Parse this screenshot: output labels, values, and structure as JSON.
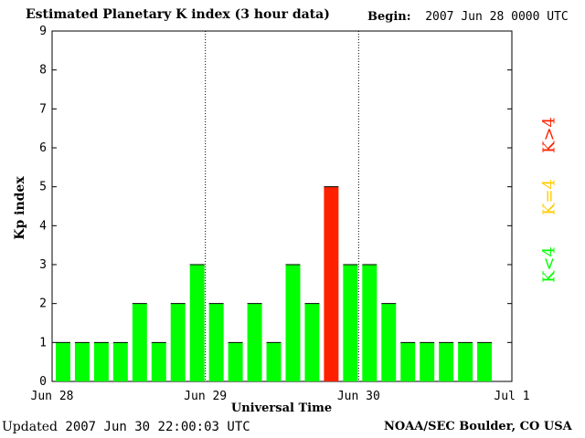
{
  "header": {
    "title": "Estimated Planetary K index (3 hour data)",
    "begin_label": "Begin:",
    "begin_value": "2007 Jun 28 0000 UTC"
  },
  "footer": {
    "updated_label": "Updated",
    "updated_value": "2007 Jun 30 22:00:03 UTC",
    "source": "NOAA/SEC Boulder, CO USA"
  },
  "legend": {
    "low": "K<4",
    "equal": "K=4",
    "high": "K>4"
  },
  "colors": {
    "low": "#00ff00",
    "equal": "#ffcc00",
    "high": "#ff2000"
  },
  "chart_data": {
    "type": "bar",
    "title": "Estimated Planetary K index (3 hour data)",
    "xlabel": "Universal Time",
    "ylabel": "Kp index",
    "ylim": [
      0,
      9
    ],
    "yticks": [
      "0",
      "1",
      "2",
      "3",
      "4",
      "5",
      "6",
      "7",
      "8",
      "9"
    ],
    "xticks": [
      "Jun 28",
      "Jun 29",
      "Jun 30",
      "Jul 1"
    ],
    "bars_per_day": 8,
    "day_dividers": [
      "Jun 29",
      "Jun 30"
    ],
    "series": [
      {
        "values": [
          1,
          1,
          1,
          1,
          2,
          1,
          2,
          3,
          2,
          1,
          2,
          1,
          3,
          2,
          5,
          3,
          3,
          2,
          1,
          1,
          1,
          1,
          1
        ]
      }
    ],
    "grid": false
  }
}
